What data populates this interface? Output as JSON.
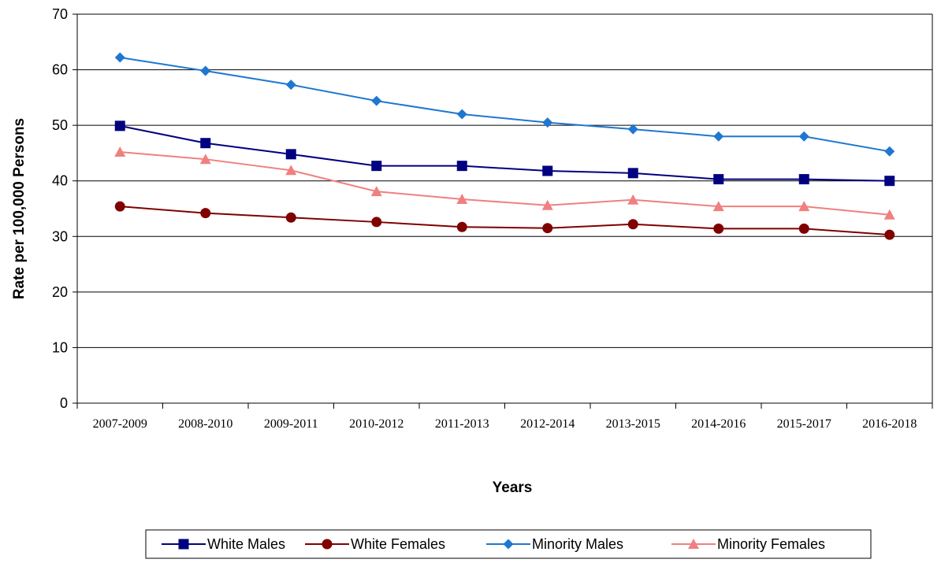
{
  "chart_data": {
    "type": "line",
    "title": "",
    "xlabel": "Years",
    "ylabel": "Rate per 100,000 Persons",
    "ylim": [
      0,
      70
    ],
    "yticks": [
      "0",
      "10",
      "20",
      "30",
      "40",
      "50",
      "60",
      "70"
    ],
    "categories": [
      "2007-2009",
      "2008-2010",
      "2009-2011",
      "2010-2012",
      "2011-2013",
      "2012-2014",
      "2013-2015",
      "2014-2016",
      "2015-2017",
      "2016-2018"
    ],
    "grid": "horizontal",
    "legend_position": "bottom",
    "series": [
      {
        "name": "White Males",
        "color": "#000080",
        "marker": "square",
        "values": [
          49.9,
          46.8,
          44.8,
          42.7,
          42.7,
          41.8,
          41.4,
          40.3,
          40.3,
          40.0
        ]
      },
      {
        "name": "White Females",
        "color": "#800000",
        "marker": "circle",
        "values": [
          35.4,
          34.2,
          33.4,
          32.6,
          31.7,
          31.5,
          32.2,
          31.4,
          31.4,
          30.3
        ]
      },
      {
        "name": "Minority Males",
        "color": "#1f77d0",
        "marker": "diamond",
        "values": [
          62.2,
          59.8,
          57.3,
          54.4,
          52.0,
          50.5,
          49.3,
          48.0,
          48.0,
          45.3
        ]
      },
      {
        "name": "Minority Females",
        "color": "#f08080",
        "marker": "triangle",
        "values": [
          45.2,
          43.9,
          41.9,
          38.1,
          36.7,
          35.6,
          36.6,
          35.4,
          35.4,
          33.9
        ]
      }
    ]
  }
}
